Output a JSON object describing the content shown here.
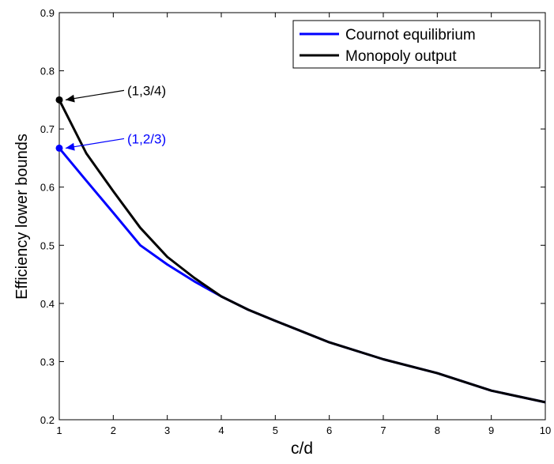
{
  "chart_data": {
    "type": "line",
    "title": "",
    "xlabel": "c/d",
    "ylabel": "Efficiency lower bounds",
    "xlim": [
      1,
      10
    ],
    "ylim": [
      0.2,
      0.9
    ],
    "xticks": [
      1,
      2,
      3,
      4,
      5,
      6,
      7,
      8,
      9,
      10
    ],
    "yticks": [
      0.2,
      0.3,
      0.4,
      0.5,
      0.6,
      0.7,
      0.8,
      0.9
    ],
    "xtick_labels": [
      "1",
      "2",
      "3",
      "4",
      "5",
      "6",
      "7",
      "8",
      "9",
      "10"
    ],
    "ytick_labels": [
      "0.2",
      "0.3",
      "0.4",
      "0.5",
      "0.6",
      "0.7",
      "0.8",
      "0.9"
    ],
    "grid": false,
    "legend_position": "top-right",
    "series": [
      {
        "name": "Cournot equilibrium",
        "color": "#0000ff",
        "x": [
          1,
          1.5,
          2,
          2.5,
          3,
          3.5,
          4,
          4.5,
          5,
          6,
          7,
          8,
          9,
          10
        ],
        "y": [
          0.667,
          0.611,
          0.556,
          0.5,
          0.467,
          0.438,
          0.412,
          0.389,
          0.37,
          0.333,
          0.304,
          0.28,
          0.25,
          0.23
        ]
      },
      {
        "name": "Monopoly output",
        "color": "#000000",
        "x": [
          1,
          1.5,
          2,
          2.5,
          3,
          3.5,
          4,
          4.5,
          5,
          6,
          7,
          8,
          9,
          10
        ],
        "y": [
          0.75,
          0.658,
          0.593,
          0.53,
          0.48,
          0.444,
          0.412,
          0.389,
          0.37,
          0.333,
          0.304,
          0.28,
          0.25,
          0.23
        ]
      }
    ],
    "annotations": [
      {
        "text": "(1,3/4)",
        "x": 1,
        "y": 0.75,
        "color": "#000000"
      },
      {
        "text": "(1,2/3)",
        "x": 1,
        "y": 0.667,
        "color": "#0000ff"
      }
    ]
  }
}
